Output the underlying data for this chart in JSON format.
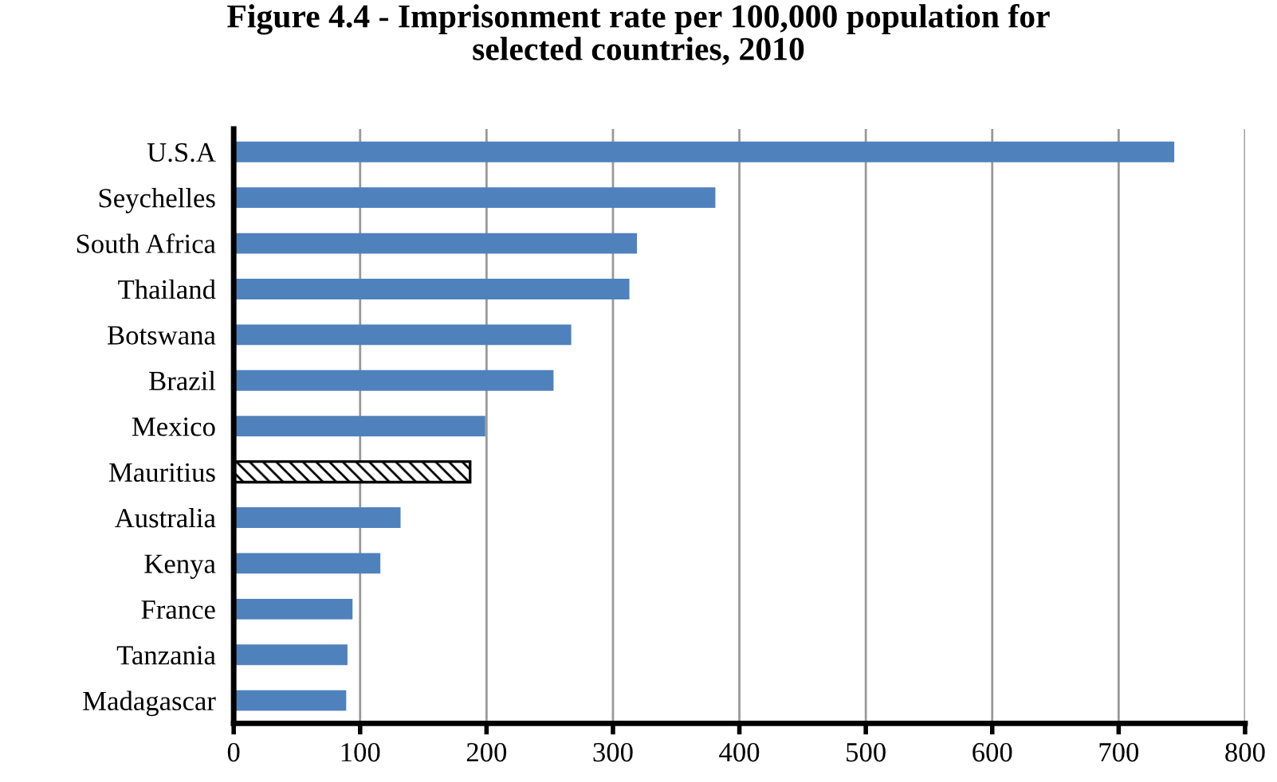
{
  "chart_data": {
    "type": "bar",
    "orientation": "horizontal",
    "title": "Figure 4.4 - Imprisonment rate per 100,000 population for\nselected countries, 2010",
    "categories": [
      "U.S.A",
      "Seychelles",
      "South Africa",
      "Thailand",
      "Botswana",
      "Brazil",
      "Mexico",
      "Mauritius",
      "Australia",
      "Kenya",
      "France",
      "Tanzania",
      "Madagascar"
    ],
    "values": [
      744,
      381,
      319,
      313,
      267,
      253,
      199,
      187,
      132,
      116,
      94,
      90,
      89
    ],
    "colors": [
      "#4f81bd",
      "#4f81bd",
      "#4f81bd",
      "#4f81bd",
      "#4f81bd",
      "#4f81bd",
      "#4f81bd",
      "#000000",
      "#4f81bd",
      "#4f81bd",
      "#4f81bd",
      "#4f81bd",
      "#4f81bd"
    ],
    "xlim": [
      0,
      800
    ],
    "xticks": [
      0,
      100,
      200,
      300,
      400,
      500,
      600,
      700,
      800
    ],
    "grid": "x",
    "legend": false
  }
}
